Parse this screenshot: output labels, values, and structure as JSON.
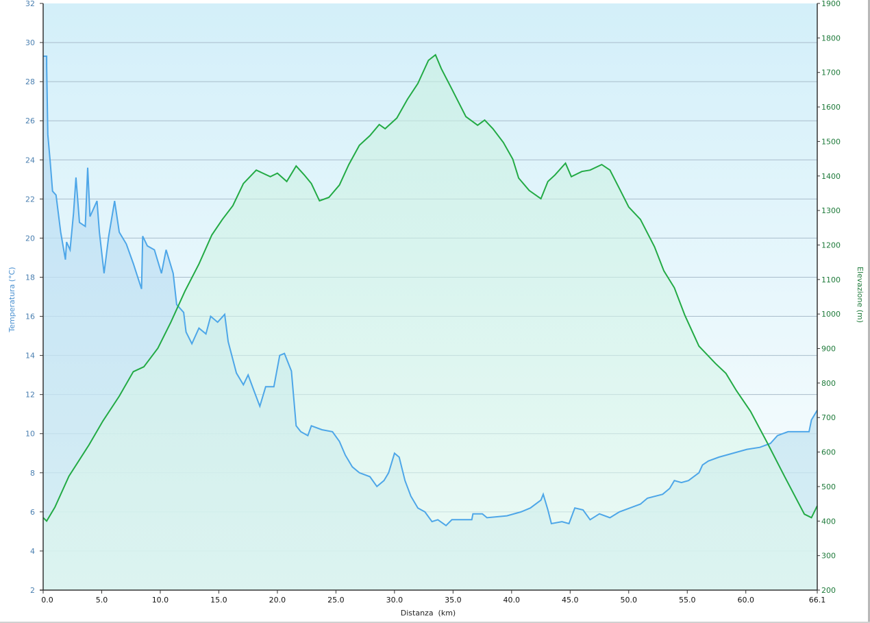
{
  "chart_data": {
    "type": "line",
    "xlabel": "Distanza  (km)",
    "ylabel_left": "Temperatura (°C)",
    "ylabel_right": "Elevazione (m)",
    "xlim": [
      0,
      66.1
    ],
    "ylim_left": [
      2,
      32
    ],
    "ylim_right": [
      200,
      1900
    ],
    "x_ticks": [
      "0.0",
      "5.0",
      "10.0",
      "15.0",
      "20.0",
      "25.0",
      "30.0",
      "35.0",
      "40.0",
      "45.0",
      "50.0",
      "55.0",
      "60.0",
      "66.1"
    ],
    "x_tick_values": [
      0,
      5,
      10,
      15,
      20,
      25,
      30,
      35,
      40,
      45,
      50,
      55,
      60,
      66.1
    ],
    "y_ticks_left": [
      2,
      4,
      6,
      8,
      10,
      12,
      14,
      16,
      18,
      20,
      22,
      24,
      26,
      28,
      30,
      32
    ],
    "y_ticks_right": [
      200,
      300,
      400,
      500,
      600,
      700,
      800,
      900,
      1000,
      1100,
      1200,
      1300,
      1400,
      1500,
      1600,
      1700,
      1800,
      1900
    ],
    "grid": true,
    "colors": {
      "temperature": "#4da6e8",
      "elevation": "#22aa44",
      "left_axis": "#4a7fb0",
      "right_axis": "#1e7a3a"
    },
    "series": [
      {
        "name": "Temperatura",
        "axis": "left",
        "points": [
          [
            0,
            29.3
          ],
          [
            0.3,
            29.3
          ],
          [
            0.3,
            28.8
          ],
          [
            0.4,
            25.3
          ],
          [
            0.6,
            23.9
          ],
          [
            0.8,
            22.4
          ],
          [
            1.1,
            22.2
          ],
          [
            1.5,
            20.3
          ],
          [
            1.9,
            18.9
          ],
          [
            2.0,
            19.8
          ],
          [
            2.3,
            19.4
          ],
          [
            2.6,
            21.3
          ],
          [
            2.8,
            23.1
          ],
          [
            3.1,
            20.8
          ],
          [
            3.6,
            20.6
          ],
          [
            3.8,
            23.6
          ],
          [
            4.0,
            21.1
          ],
          [
            4.6,
            21.9
          ],
          [
            4.8,
            20.3
          ],
          [
            5.2,
            18.2
          ],
          [
            5.6,
            20.1
          ],
          [
            6.1,
            21.9
          ],
          [
            6.5,
            20.3
          ],
          [
            7.1,
            19.7
          ],
          [
            7.7,
            18.7
          ],
          [
            8.4,
            17.4
          ],
          [
            8.5,
            20.1
          ],
          [
            8.9,
            19.6
          ],
          [
            9.5,
            19.4
          ],
          [
            10.1,
            18.2
          ],
          [
            10.5,
            19.4
          ],
          [
            11.1,
            18.2
          ],
          [
            11.4,
            16.6
          ],
          [
            12.0,
            16.2
          ],
          [
            12.2,
            15.2
          ],
          [
            12.7,
            14.6
          ],
          [
            13.3,
            15.4
          ],
          [
            13.9,
            15.1
          ],
          [
            14.3,
            16.0
          ],
          [
            14.9,
            15.7
          ],
          [
            15.5,
            16.1
          ],
          [
            15.8,
            14.7
          ],
          [
            16.5,
            13.1
          ],
          [
            17.1,
            12.5
          ],
          [
            17.5,
            13.0
          ],
          [
            18.0,
            12.2
          ],
          [
            18.5,
            11.4
          ],
          [
            19.0,
            12.4
          ],
          [
            19.7,
            12.4
          ],
          [
            20.2,
            14.0
          ],
          [
            20.6,
            14.1
          ],
          [
            21.2,
            13.2
          ],
          [
            21.6,
            10.4
          ],
          [
            22.0,
            10.1
          ],
          [
            22.6,
            9.9
          ],
          [
            22.9,
            10.4
          ],
          [
            23.8,
            10.2
          ],
          [
            24.7,
            10.1
          ],
          [
            25.3,
            9.6
          ],
          [
            25.8,
            8.9
          ],
          [
            26.4,
            8.3
          ],
          [
            27.0,
            8.0
          ],
          [
            27.9,
            7.8
          ],
          [
            28.5,
            7.3
          ],
          [
            29.1,
            7.6
          ],
          [
            29.5,
            8.0
          ],
          [
            30.0,
            9.0
          ],
          [
            30.4,
            8.8
          ],
          [
            30.9,
            7.6
          ],
          [
            31.4,
            6.8
          ],
          [
            32.0,
            6.2
          ],
          [
            32.6,
            6.0
          ],
          [
            33.2,
            5.5
          ],
          [
            33.7,
            5.6
          ],
          [
            34.4,
            5.3
          ],
          [
            34.9,
            5.6
          ],
          [
            36.6,
            5.6
          ],
          [
            36.7,
            5.9
          ],
          [
            37.5,
            5.9
          ],
          [
            37.9,
            5.7
          ],
          [
            39.6,
            5.8
          ],
          [
            40.8,
            6.0
          ],
          [
            41.6,
            6.2
          ],
          [
            42.5,
            6.6
          ],
          [
            42.7,
            6.9
          ],
          [
            43.1,
            6.1
          ],
          [
            43.4,
            5.4
          ],
          [
            44.3,
            5.5
          ],
          [
            44.9,
            5.4
          ],
          [
            45.4,
            6.2
          ],
          [
            46.1,
            6.1
          ],
          [
            46.7,
            5.6
          ],
          [
            47.5,
            5.9
          ],
          [
            48.4,
            5.7
          ],
          [
            49.2,
            6.0
          ],
          [
            50.1,
            6.2
          ],
          [
            51.0,
            6.4
          ],
          [
            51.6,
            6.7
          ],
          [
            52.9,
            6.9
          ],
          [
            53.5,
            7.2
          ],
          [
            53.9,
            7.6
          ],
          [
            54.5,
            7.5
          ],
          [
            55.1,
            7.6
          ],
          [
            56.0,
            8.0
          ],
          [
            56.3,
            8.4
          ],
          [
            56.8,
            8.6
          ],
          [
            57.7,
            8.8
          ],
          [
            60.1,
            9.2
          ],
          [
            61.2,
            9.3
          ],
          [
            62.1,
            9.5
          ],
          [
            62.7,
            9.9
          ],
          [
            63.6,
            10.1
          ],
          [
            65.4,
            10.1
          ],
          [
            65.6,
            10.7
          ],
          [
            66.1,
            11.2
          ]
        ]
      },
      {
        "name": "Elevazione",
        "axis": "right",
        "points": [
          [
            0,
            410
          ],
          [
            0.3,
            400
          ],
          [
            1.0,
            440
          ],
          [
            2.2,
            530
          ],
          [
            3.9,
            620
          ],
          [
            5.1,
            690
          ],
          [
            6.5,
            762
          ],
          [
            7.7,
            833
          ],
          [
            8.6,
            847
          ],
          [
            9.8,
            901
          ],
          [
            10.9,
            976
          ],
          [
            12.1,
            1066
          ],
          [
            13.3,
            1145
          ],
          [
            14.4,
            1229
          ],
          [
            15.3,
            1274
          ],
          [
            16.2,
            1314
          ],
          [
            17.1,
            1378
          ],
          [
            18.2,
            1417
          ],
          [
            19.4,
            1398
          ],
          [
            20.0,
            1408
          ],
          [
            20.8,
            1384
          ],
          [
            21.6,
            1429
          ],
          [
            22.3,
            1403
          ],
          [
            22.9,
            1378
          ],
          [
            23.6,
            1328
          ],
          [
            24.4,
            1338
          ],
          [
            25.3,
            1374
          ],
          [
            26.1,
            1433
          ],
          [
            27.0,
            1489
          ],
          [
            27.9,
            1517
          ],
          [
            28.7,
            1549
          ],
          [
            29.2,
            1537
          ],
          [
            30.2,
            1568
          ],
          [
            31.1,
            1622
          ],
          [
            32.0,
            1668
          ],
          [
            32.9,
            1735
          ],
          [
            33.5,
            1751
          ],
          [
            34.0,
            1711
          ],
          [
            34.9,
            1652
          ],
          [
            36.1,
            1572
          ],
          [
            37.1,
            1547
          ],
          [
            37.7,
            1562
          ],
          [
            38.4,
            1537
          ],
          [
            39.3,
            1497
          ],
          [
            40.1,
            1449
          ],
          [
            40.6,
            1394
          ],
          [
            41.5,
            1358
          ],
          [
            42.5,
            1334
          ],
          [
            43.1,
            1384
          ],
          [
            43.7,
            1403
          ],
          [
            44.6,
            1437
          ],
          [
            45.1,
            1398
          ],
          [
            46.0,
            1413
          ],
          [
            46.7,
            1417
          ],
          [
            47.7,
            1433
          ],
          [
            48.4,
            1417
          ],
          [
            49.2,
            1364
          ],
          [
            50.0,
            1310
          ],
          [
            51.0,
            1274
          ],
          [
            52.2,
            1195
          ],
          [
            53.0,
            1125
          ],
          [
            53.9,
            1076
          ],
          [
            54.8,
            996
          ],
          [
            56.0,
            907
          ],
          [
            57.4,
            857
          ],
          [
            58.3,
            828
          ],
          [
            59.2,
            778
          ],
          [
            60.4,
            718
          ],
          [
            61.8,
            629
          ],
          [
            63.3,
            530
          ],
          [
            65.0,
            420
          ],
          [
            65.6,
            410
          ],
          [
            66.1,
            444
          ]
        ]
      }
    ]
  }
}
